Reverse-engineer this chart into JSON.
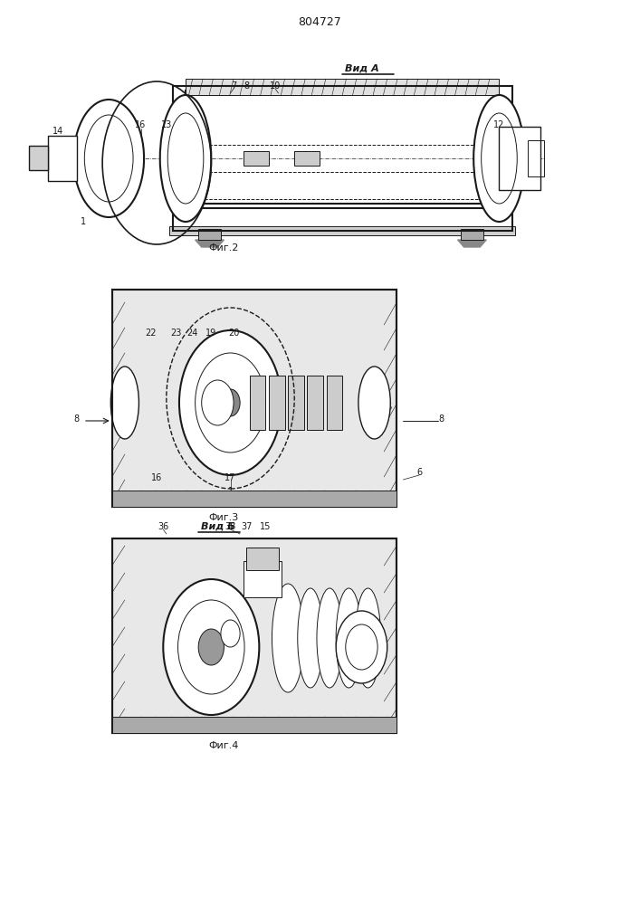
{
  "title": "804727",
  "fig2_label": "Фиг.2",
  "fig3_label": "Фиг.3",
  "fig4_label": "Фиг.4",
  "vid_a_label": "Вид А",
  "vid_b_label": "Вид Б",
  "bg_color": "#ffffff",
  "line_color": "#1a1a1a"
}
